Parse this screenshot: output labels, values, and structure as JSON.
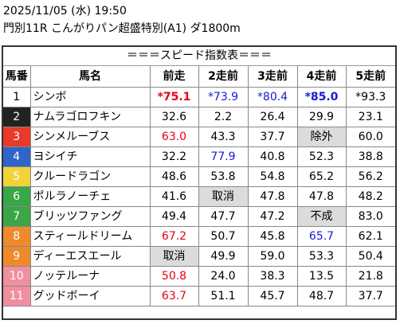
{
  "header": {
    "datetime": "2025/11/05 (水) 19:50",
    "race": "門別11R こんがりパン超盛特別(A1) ダ1800m"
  },
  "table_title": "＝＝＝スピード指数表＝＝＝",
  "columns": [
    "馬番",
    "馬名",
    "前走",
    "2走前",
    "3走前",
    "4走前",
    "5走前"
  ],
  "colors": {
    "red": "#e60012",
    "blue": "#1a1acd",
    "gray_cell": "#dcdcdc"
  },
  "horses": [
    {
      "num": "1",
      "num_bg": "#ffffff",
      "num_fg": "#000000",
      "name": "シンボ",
      "cells": [
        {
          "text": "*75.1",
          "color": "red",
          "bold": true,
          "gray": false
        },
        {
          "text": "*73.9",
          "color": "blue",
          "bold": false,
          "gray": false
        },
        {
          "text": "*80.4",
          "color": "blue",
          "bold": false,
          "gray": false
        },
        {
          "text": "*85.0",
          "color": "blue",
          "bold": true,
          "gray": false
        },
        {
          "text": "*93.3",
          "color": "black",
          "bold": false,
          "gray": false
        }
      ]
    },
    {
      "num": "2",
      "num_bg": "#222222",
      "num_fg": "#ffffff",
      "name": "ナムラゴロフキン",
      "cells": [
        {
          "text": "32.6",
          "color": "black",
          "bold": false,
          "gray": false
        },
        {
          "text": "2.2",
          "color": "black",
          "bold": false,
          "gray": false
        },
        {
          "text": "26.4",
          "color": "black",
          "bold": false,
          "gray": false
        },
        {
          "text": "29.9",
          "color": "black",
          "bold": false,
          "gray": false
        },
        {
          "text": "23.1",
          "color": "black",
          "bold": false,
          "gray": false
        }
      ]
    },
    {
      "num": "3",
      "num_bg": "#e8392a",
      "num_fg": "#ffffff",
      "name": "シンメルーブス",
      "cells": [
        {
          "text": "63.0",
          "color": "red",
          "bold": false,
          "gray": false
        },
        {
          "text": "43.3",
          "color": "black",
          "bold": false,
          "gray": false
        },
        {
          "text": "37.7",
          "color": "black",
          "bold": false,
          "gray": false
        },
        {
          "text": "除外",
          "color": "black",
          "bold": false,
          "gray": true
        },
        {
          "text": "60.0",
          "color": "black",
          "bold": false,
          "gray": false
        }
      ]
    },
    {
      "num": "4",
      "num_bg": "#2f64c8",
      "num_fg": "#ffffff",
      "name": "ヨシイチ",
      "cells": [
        {
          "text": "32.2",
          "color": "black",
          "bold": false,
          "gray": false
        },
        {
          "text": "77.9",
          "color": "blue",
          "bold": false,
          "gray": false
        },
        {
          "text": "40.8",
          "color": "black",
          "bold": false,
          "gray": false
        },
        {
          "text": "52.3",
          "color": "black",
          "bold": false,
          "gray": false
        },
        {
          "text": "38.8",
          "color": "black",
          "bold": false,
          "gray": false
        }
      ]
    },
    {
      "num": "5",
      "num_bg": "#f2d23a",
      "num_fg": "#ffffff",
      "name": "クルードラゴン",
      "cells": [
        {
          "text": "48.6",
          "color": "black",
          "bold": false,
          "gray": false
        },
        {
          "text": "53.8",
          "color": "black",
          "bold": false,
          "gray": false
        },
        {
          "text": "54.8",
          "color": "black",
          "bold": false,
          "gray": false
        },
        {
          "text": "65.2",
          "color": "black",
          "bold": false,
          "gray": false
        },
        {
          "text": "56.2",
          "color": "black",
          "bold": false,
          "gray": false
        }
      ]
    },
    {
      "num": "6",
      "num_bg": "#3aa646",
      "num_fg": "#ffffff",
      "name": "ポルラノーチェ",
      "cells": [
        {
          "text": "41.6",
          "color": "black",
          "bold": false,
          "gray": false
        },
        {
          "text": "取消",
          "color": "black",
          "bold": false,
          "gray": true
        },
        {
          "text": "47.8",
          "color": "black",
          "bold": false,
          "gray": false
        },
        {
          "text": "47.8",
          "color": "black",
          "bold": false,
          "gray": false
        },
        {
          "text": "48.2",
          "color": "black",
          "bold": false,
          "gray": false
        }
      ]
    },
    {
      "num": "7",
      "num_bg": "#3aa646",
      "num_fg": "#ffffff",
      "name": "ブリッツファング",
      "cells": [
        {
          "text": "49.4",
          "color": "black",
          "bold": false,
          "gray": false
        },
        {
          "text": "47.7",
          "color": "black",
          "bold": false,
          "gray": false
        },
        {
          "text": "47.2",
          "color": "black",
          "bold": false,
          "gray": false
        },
        {
          "text": "不成",
          "color": "black",
          "bold": false,
          "gray": true
        },
        {
          "text": "83.0",
          "color": "black",
          "bold": false,
          "gray": false
        }
      ]
    },
    {
      "num": "8",
      "num_bg": "#ef8a2c",
      "num_fg": "#ffffff",
      "name": "スティールドリーム",
      "cells": [
        {
          "text": "67.2",
          "color": "red",
          "bold": false,
          "gray": false
        },
        {
          "text": "50.7",
          "color": "black",
          "bold": false,
          "gray": false
        },
        {
          "text": "45.8",
          "color": "black",
          "bold": false,
          "gray": false
        },
        {
          "text": "65.7",
          "color": "blue",
          "bold": false,
          "gray": false
        },
        {
          "text": "62.1",
          "color": "black",
          "bold": false,
          "gray": false
        }
      ]
    },
    {
      "num": "9",
      "num_bg": "#ef8a2c",
      "num_fg": "#ffffff",
      "name": "ディーエスエール",
      "cells": [
        {
          "text": "取消",
          "color": "black",
          "bold": false,
          "gray": true
        },
        {
          "text": "49.9",
          "color": "black",
          "bold": false,
          "gray": false
        },
        {
          "text": "59.0",
          "color": "black",
          "bold": false,
          "gray": false
        },
        {
          "text": "53.3",
          "color": "black",
          "bold": false,
          "gray": false
        },
        {
          "text": "50.4",
          "color": "black",
          "bold": false,
          "gray": false
        }
      ]
    },
    {
      "num": "10",
      "num_bg": "#f08fa0",
      "num_fg": "#ffffff",
      "name": "ノッテルーナ",
      "cells": [
        {
          "text": "50.8",
          "color": "red",
          "bold": false,
          "gray": false
        },
        {
          "text": "24.0",
          "color": "black",
          "bold": false,
          "gray": false
        },
        {
          "text": "38.3",
          "color": "black",
          "bold": false,
          "gray": false
        },
        {
          "text": "13.5",
          "color": "black",
          "bold": false,
          "gray": false
        },
        {
          "text": "21.8",
          "color": "black",
          "bold": false,
          "gray": false
        }
      ]
    },
    {
      "num": "11",
      "num_bg": "#f08fa0",
      "num_fg": "#ffffff",
      "name": "グッドボーイ",
      "cells": [
        {
          "text": "63.7",
          "color": "red",
          "bold": false,
          "gray": false
        },
        {
          "text": "51.1",
          "color": "black",
          "bold": false,
          "gray": false
        },
        {
          "text": "45.7",
          "color": "black",
          "bold": false,
          "gray": false
        },
        {
          "text": "48.7",
          "color": "black",
          "bold": false,
          "gray": false
        },
        {
          "text": "37.7",
          "color": "black",
          "bold": false,
          "gray": false
        }
      ]
    }
  ]
}
